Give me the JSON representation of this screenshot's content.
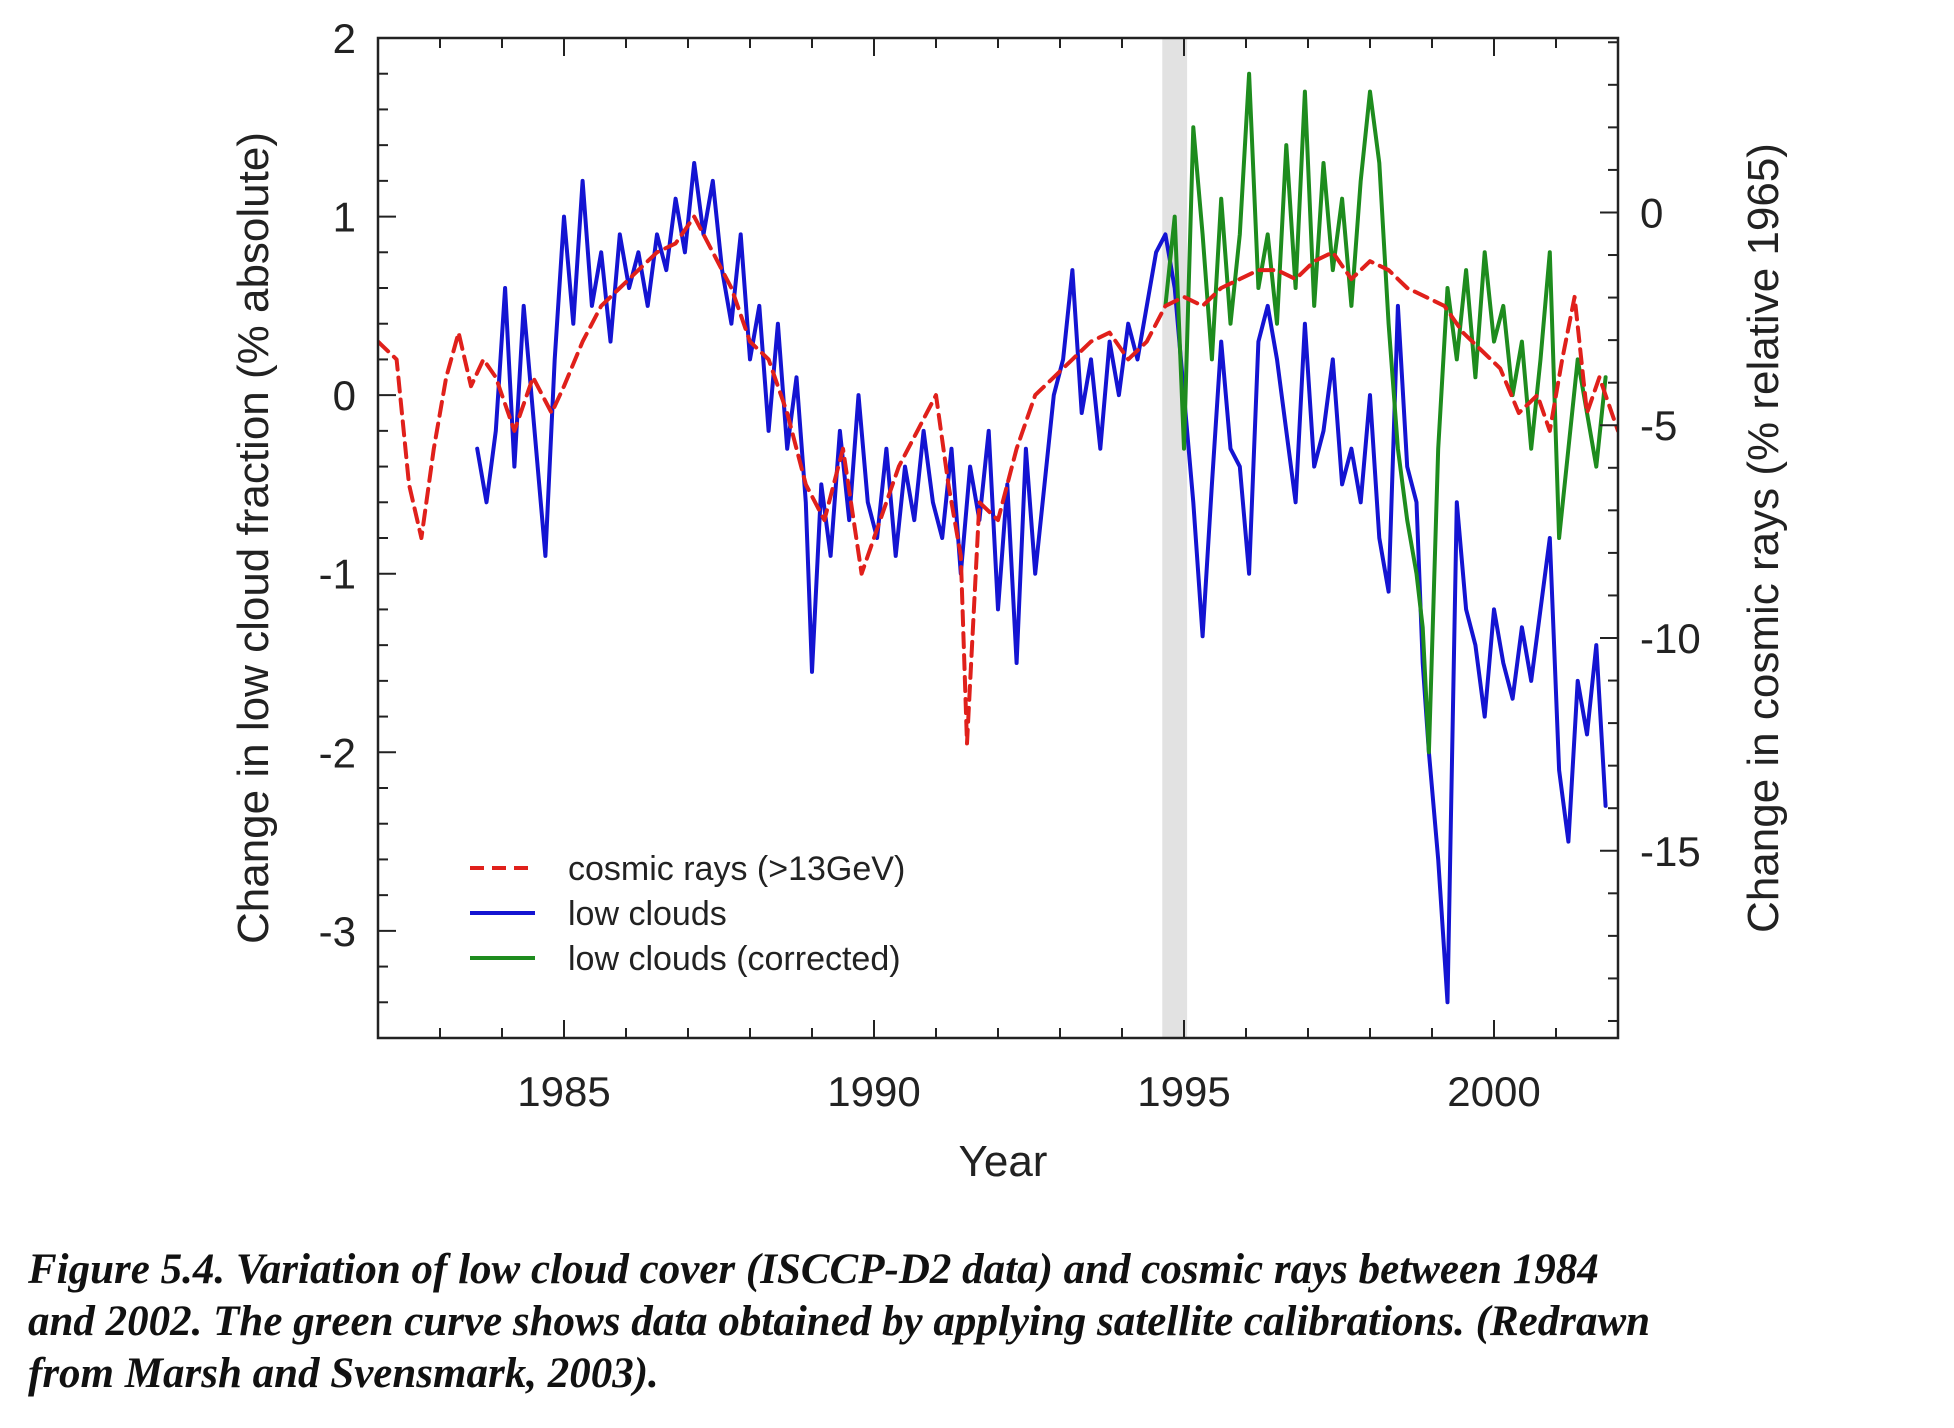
{
  "chart_data": {
    "type": "line",
    "xlabel": "Year",
    "ylabel": "Change in low cloud fraction (% absolute)",
    "y2label": "Change in cosmic rays (% relative 1965)",
    "xlim": [
      1982,
      2002
    ],
    "ylim": [
      -3.6,
      2.0
    ],
    "y2lim": [
      -19.4,
      4.1
    ],
    "x_ticks": [
      1985,
      1990,
      1995,
      2000
    ],
    "y_ticks": [
      -3,
      -2,
      -1,
      0,
      1,
      2
    ],
    "y2_ticks": [
      -15,
      -10,
      -5,
      0
    ],
    "shaded_band": [
      1994.65,
      1995.05
    ],
    "legend": {
      "placement": "bottom-left"
    },
    "series": [
      {
        "name": "cosmic rays (>13GeV)",
        "axis": "left",
        "color": "#e0201b",
        "dash": true,
        "x": [
          1982.0,
          1982.3,
          1982.5,
          1982.7,
          1982.9,
          1983.1,
          1983.3,
          1983.5,
          1983.7,
          1983.9,
          1984.2,
          1984.5,
          1984.8,
          1985.0,
          1985.3,
          1985.6,
          1985.9,
          1986.2,
          1986.5,
          1986.8,
          1987.1,
          1987.4,
          1987.7,
          1988.0,
          1988.3,
          1988.6,
          1988.9,
          1989.2,
          1989.5,
          1989.8,
          1990.1,
          1990.4,
          1990.7,
          1991.0,
          1991.2,
          1991.4,
          1991.5,
          1991.7,
          1992.0,
          1992.3,
          1992.6,
          1992.9,
          1993.2,
          1993.5,
          1993.8,
          1994.1,
          1994.4,
          1994.7,
          1995.0,
          1995.3,
          1995.6,
          1995.9,
          1996.2,
          1996.5,
          1996.8,
          1997.1,
          1997.4,
          1997.7,
          1998.0,
          1998.3,
          1998.6,
          1998.9,
          1999.2,
          1999.5,
          1999.8,
          2000.1,
          2000.4,
          2000.7,
          2000.9,
          2001.1,
          2001.3,
          2001.5,
          2001.7,
          2002.0
        ],
        "y": [
          0.3,
          0.2,
          -0.5,
          -0.8,
          -0.3,
          0.1,
          0.35,
          0.05,
          0.2,
          0.1,
          -0.2,
          0.1,
          -0.1,
          0.05,
          0.3,
          0.5,
          0.6,
          0.7,
          0.8,
          0.85,
          1.0,
          0.8,
          0.6,
          0.3,
          0.2,
          -0.1,
          -0.5,
          -0.7,
          -0.3,
          -1.0,
          -0.7,
          -0.4,
          -0.2,
          0.0,
          -0.5,
          -0.9,
          -1.95,
          -0.6,
          -0.7,
          -0.3,
          0.0,
          0.1,
          0.2,
          0.3,
          0.35,
          0.2,
          0.3,
          0.5,
          0.55,
          0.5,
          0.6,
          0.65,
          0.7,
          0.7,
          0.65,
          0.75,
          0.8,
          0.65,
          0.75,
          0.7,
          0.6,
          0.55,
          0.5,
          0.35,
          0.25,
          0.15,
          -0.1,
          0.0,
          -0.2,
          0.2,
          0.55,
          -0.1,
          0.1,
          -0.2
        ]
      },
      {
        "name": "low clouds",
        "axis": "left",
        "color": "#1414d2",
        "dash": false,
        "x": [
          1983.6,
          1983.75,
          1983.9,
          1984.05,
          1984.2,
          1984.35,
          1984.5,
          1984.7,
          1984.85,
          1985.0,
          1985.15,
          1985.3,
          1985.45,
          1985.6,
          1985.75,
          1985.9,
          1986.05,
          1986.2,
          1986.35,
          1986.5,
          1986.65,
          1986.8,
          1986.95,
          1987.1,
          1987.25,
          1987.4,
          1987.55,
          1987.7,
          1987.85,
          1988.0,
          1988.15,
          1988.3,
          1988.45,
          1988.6,
          1988.75,
          1988.9,
          1989.0,
          1989.15,
          1989.3,
          1989.45,
          1989.6,
          1989.75,
          1989.9,
          1990.05,
          1990.2,
          1990.35,
          1990.5,
          1990.65,
          1990.8,
          1990.95,
          1991.1,
          1991.25,
          1991.4,
          1991.55,
          1991.7,
          1991.85,
          1992.0,
          1992.15,
          1992.3,
          1992.45,
          1992.6,
          1992.75,
          1992.9,
          1993.05,
          1993.2,
          1993.35,
          1993.5,
          1993.65,
          1993.8,
          1993.95,
          1994.1,
          1994.25,
          1994.4,
          1994.55,
          1994.7,
          1994.85,
          1994.95,
          1995.05,
          1995.15,
          1995.3,
          1995.45,
          1995.6,
          1995.75,
          1995.9,
          1996.05,
          1996.2,
          1996.35,
          1996.5,
          1996.65,
          1996.8,
          1996.95,
          1997.1,
          1997.25,
          1997.4,
          1997.55,
          1997.7,
          1997.85,
          1998.0,
          1998.15,
          1998.3,
          1998.45,
          1998.6,
          1998.75,
          1998.85,
          1998.95,
          1999.1,
          1999.25,
          1999.4,
          1999.55,
          1999.7,
          1999.85,
          2000.0,
          2000.15,
          2000.3,
          2000.45,
          2000.6,
          2000.75,
          2000.9,
          2001.05,
          2001.2,
          2001.35,
          2001.5,
          2001.65,
          2001.8
        ],
        "y": [
          -0.3,
          -0.6,
          -0.2,
          0.6,
          -0.4,
          0.5,
          -0.1,
          -0.9,
          0.2,
          1.0,
          0.4,
          1.2,
          0.5,
          0.8,
          0.3,
          0.9,
          0.6,
          0.8,
          0.5,
          0.9,
          0.7,
          1.1,
          0.8,
          1.3,
          0.9,
          1.2,
          0.7,
          0.4,
          0.9,
          0.2,
          0.5,
          -0.2,
          0.4,
          -0.3,
          0.1,
          -0.6,
          -1.55,
          -0.5,
          -0.9,
          -0.2,
          -0.7,
          0.0,
          -0.6,
          -0.8,
          -0.3,
          -0.9,
          -0.4,
          -0.7,
          -0.2,
          -0.6,
          -0.8,
          -0.3,
          -1.0,
          -0.4,
          -0.7,
          -0.2,
          -1.2,
          -0.5,
          -1.5,
          -0.3,
          -1.0,
          -0.5,
          0.0,
          0.2,
          0.7,
          -0.1,
          0.2,
          -0.3,
          0.3,
          0.0,
          0.4,
          0.2,
          0.5,
          0.8,
          0.9,
          0.6,
          0.2,
          -0.2,
          -0.6,
          -1.35,
          -0.5,
          0.3,
          -0.3,
          -0.4,
          -1.0,
          0.3,
          0.5,
          0.2,
          -0.2,
          -0.6,
          0.4,
          -0.4,
          -0.2,
          0.2,
          -0.5,
          -0.3,
          -0.6,
          0.0,
          -0.8,
          -1.1,
          0.5,
          -0.4,
          -0.6,
          -1.5,
          -2.0,
          -2.6,
          -3.4,
          -0.6,
          -1.2,
          -1.4,
          -1.8,
          -1.2,
          -1.5,
          -1.7,
          -1.3,
          -1.6,
          -1.2,
          -0.8,
          -2.1,
          -2.5,
          -1.6,
          -1.9,
          -1.4,
          -2.3
        ]
      },
      {
        "name": "low clouds (corrected)",
        "axis": "left",
        "color": "#1e8c1e",
        "dash": false,
        "x": [
          1994.7,
          1994.85,
          1995.0,
          1995.15,
          1995.3,
          1995.45,
          1995.6,
          1995.75,
          1995.9,
          1996.05,
          1996.2,
          1996.35,
          1996.5,
          1996.65,
          1996.8,
          1996.95,
          1997.1,
          1997.25,
          1997.4,
          1997.55,
          1997.7,
          1997.85,
          1998.0,
          1998.15,
          1998.3,
          1998.45,
          1998.6,
          1998.75,
          1998.85,
          1998.95,
          1999.1,
          1999.25,
          1999.4,
          1999.55,
          1999.7,
          1999.85,
          2000.0,
          2000.15,
          2000.3,
          2000.45,
          2000.6,
          2000.75,
          2000.9,
          2001.05,
          2001.2,
          2001.35,
          2001.5,
          2001.65,
          2001.8
        ],
        "y": [
          0.5,
          1.0,
          -0.3,
          1.5,
          0.9,
          0.2,
          1.1,
          0.4,
          0.9,
          1.8,
          0.6,
          0.9,
          0.4,
          1.4,
          0.6,
          1.7,
          0.5,
          1.3,
          0.7,
          1.1,
          0.5,
          1.2,
          1.7,
          1.3,
          0.4,
          -0.3,
          -0.7,
          -1.0,
          -1.3,
          -2.0,
          -0.3,
          0.6,
          0.2,
          0.7,
          0.1,
          0.8,
          0.3,
          0.5,
          0.0,
          0.3,
          -0.3,
          0.2,
          0.8,
          -0.8,
          -0.3,
          0.2,
          -0.1,
          -0.4,
          0.1
        ]
      }
    ]
  },
  "caption": {
    "line1": "Figure 5.4. Variation of low cloud cover (ISCCP-D2 data) and cosmic rays between 1984",
    "line2": "and 2002. The green curve shows data obtained by applying satellite calibrations. (Redrawn",
    "line3": "from Marsh and Svensmark, 2003)."
  }
}
